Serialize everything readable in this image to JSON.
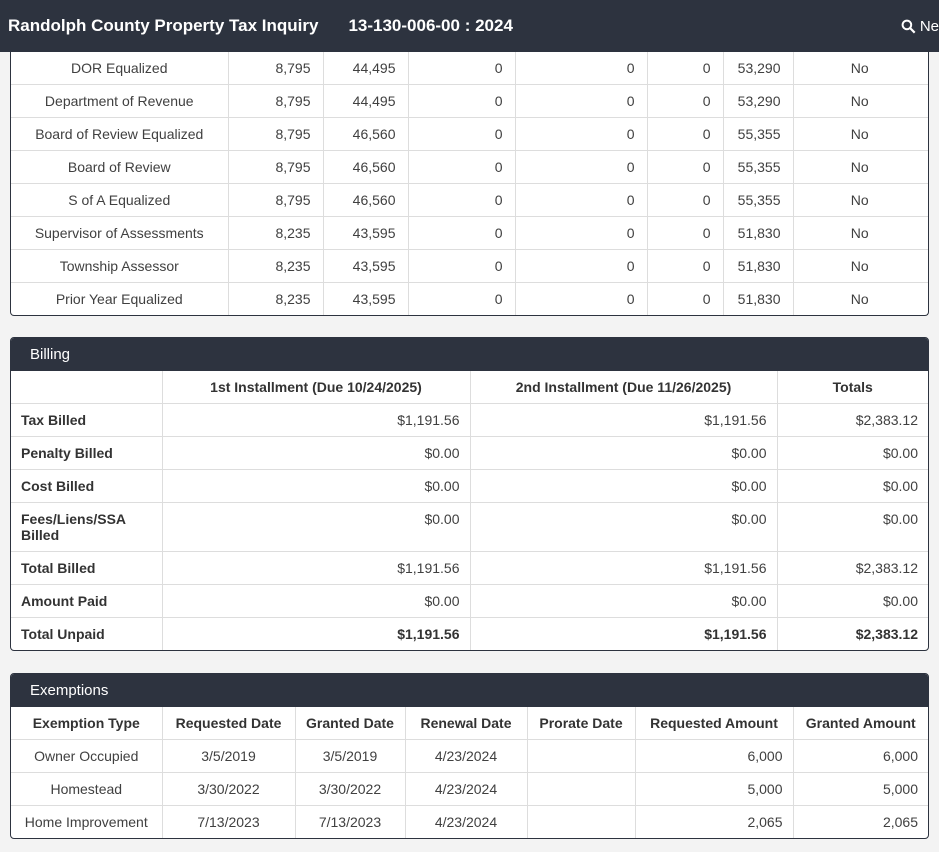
{
  "navbar": {
    "title": "Randolph County Property Tax Inquiry",
    "parcel": "13-130-006-00 : 2024",
    "nav_right_label": "Ne"
  },
  "colors": {
    "header_bg": "#2d333f",
    "grid_line": "#dddddd",
    "page_bg": "#f3f3f3",
    "text": "#404040"
  },
  "assessments": {
    "rows": [
      {
        "label": "DOR Equalized",
        "values": [
          "8,795",
          "44,495",
          "0",
          "0",
          "0",
          "53,290",
          "No"
        ]
      },
      {
        "label": "Department of Revenue",
        "values": [
          "8,795",
          "44,495",
          "0",
          "0",
          "0",
          "53,290",
          "No"
        ]
      },
      {
        "label": "Board of Review Equalized",
        "values": [
          "8,795",
          "46,560",
          "0",
          "0",
          "0",
          "55,355",
          "No"
        ]
      },
      {
        "label": "Board of Review",
        "values": [
          "8,795",
          "46,560",
          "0",
          "0",
          "0",
          "55,355",
          "No"
        ]
      },
      {
        "label": "S of A Equalized",
        "values": [
          "8,795",
          "46,560",
          "0",
          "0",
          "0",
          "55,355",
          "No"
        ]
      },
      {
        "label": "Supervisor of Assessments",
        "values": [
          "8,235",
          "43,595",
          "0",
          "0",
          "0",
          "51,830",
          "No"
        ]
      },
      {
        "label": "Township Assessor",
        "values": [
          "8,235",
          "43,595",
          "0",
          "0",
          "0",
          "51,830",
          "No"
        ]
      },
      {
        "label": "Prior Year Equalized",
        "values": [
          "8,235",
          "43,595",
          "0",
          "0",
          "0",
          "51,830",
          "No"
        ]
      }
    ]
  },
  "billing": {
    "title": "Billing",
    "columns": [
      "",
      "1st Installment (Due 10/24/2025)",
      "2nd Installment (Due 11/26/2025)",
      "Totals"
    ],
    "rows": [
      {
        "label": "Tax Billed",
        "values": [
          "$1,191.56",
          "$1,191.56",
          "$2,383.12"
        ]
      },
      {
        "label": "Penalty Billed",
        "values": [
          "$0.00",
          "$0.00",
          "$0.00"
        ]
      },
      {
        "label": "Cost Billed",
        "values": [
          "$0.00",
          "$0.00",
          "$0.00"
        ]
      },
      {
        "label": "Fees/Liens/SSA Billed",
        "values": [
          "$0.00",
          "$0.00",
          "$0.00"
        ]
      },
      {
        "label": "Total Billed",
        "values": [
          "$1,191.56",
          "$1,191.56",
          "$2,383.12"
        ]
      },
      {
        "label": "Amount Paid",
        "values": [
          "$0.00",
          "$0.00",
          "$0.00"
        ]
      },
      {
        "label": "Total Unpaid",
        "values": [
          "$1,191.56",
          "$1,191.56",
          "$2,383.12"
        ],
        "bold_values": true
      }
    ]
  },
  "exemptions": {
    "title": "Exemptions",
    "columns": [
      "Exemption Type",
      "Requested Date",
      "Granted Date",
      "Renewal Date",
      "Prorate Date",
      "Requested Amount",
      "Granted Amount"
    ],
    "rows": [
      {
        "values": [
          "Owner Occupied",
          "3/5/2019",
          "3/5/2019",
          "4/23/2024",
          "",
          "6,000",
          "6,000"
        ]
      },
      {
        "values": [
          "Homestead",
          "3/30/2022",
          "3/30/2022",
          "4/23/2024",
          "",
          "5,000",
          "5,000"
        ]
      },
      {
        "values": [
          "Home Improvement",
          "7/13/2023",
          "7/13/2023",
          "4/23/2024",
          "",
          "2,065",
          "2,065"
        ]
      }
    ]
  }
}
